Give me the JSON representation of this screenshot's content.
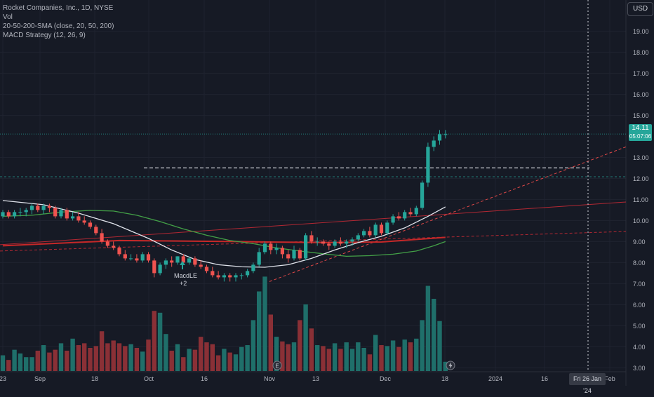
{
  "legend": {
    "symbol": "Rocket Companies, Inc., 1D, NYSE",
    "vol": "Vol",
    "sma": "20-50-200-SMA (close, 20, 50, 200)",
    "macd": "MACD Strategy (12, 26, 9)"
  },
  "currency_button": "USD",
  "price_badge": {
    "price": "14.11",
    "countdown": "05:07:06"
  },
  "crosshair_date": "Fri 26 Jan '24",
  "signal": {
    "name": "MacdLE",
    "qty": "+2"
  },
  "colors": {
    "background": "#161a25",
    "up": "#26a69a",
    "down": "#ef5350",
    "sma20": "#e0e3eb",
    "sma50": "#43a047",
    "sma200": "#c62828",
    "grid": "#1f2330"
  },
  "chart_data": {
    "type": "candlestick",
    "ylim": [
      2.7,
      20.3
    ],
    "y_ticks": [
      "19.00",
      "18.00",
      "17.00",
      "16.00",
      "15.00",
      "13.00",
      "12.00",
      "11.00",
      "10.00",
      "9.00",
      "8.00",
      "7.00",
      "6.00",
      "5.00",
      "4.00",
      "3.00"
    ],
    "x_ticks": [
      "23",
      "Sep",
      "18",
      "Oct",
      "16",
      "Nov",
      "13",
      "Dec",
      "18",
      "2024",
      "16",
      "Feb"
    ],
    "last_price": 14.11,
    "level_line": 12.5,
    "candles": [
      [
        10.2,
        10.5,
        10.1,
        10.4,
        0.17
      ],
      [
        10.4,
        10.5,
        10.1,
        10.2,
        0.12
      ],
      [
        10.2,
        10.5,
        10.1,
        10.4,
        0.23
      ],
      [
        10.4,
        10.6,
        10.2,
        10.4,
        0.19
      ],
      [
        10.4,
        10.6,
        10.2,
        10.5,
        0.15
      ],
      [
        10.5,
        10.8,
        10.3,
        10.7,
        0.15
      ],
      [
        10.7,
        10.8,
        10.4,
        10.5,
        0.22
      ],
      [
        10.5,
        10.8,
        10.3,
        10.7,
        0.28
      ],
      [
        10.7,
        10.8,
        10.4,
        10.6,
        0.2
      ],
      [
        10.6,
        10.7,
        10.1,
        10.2,
        0.23
      ],
      [
        10.2,
        10.6,
        10.1,
        10.5,
        0.3
      ],
      [
        10.5,
        10.6,
        10.0,
        10.1,
        0.22
      ],
      [
        10.1,
        10.4,
        10.0,
        10.2,
        0.35
      ],
      [
        10.2,
        10.4,
        9.9,
        10.0,
        0.28
      ],
      [
        10.0,
        10.2,
        9.8,
        9.9,
        0.3
      ],
      [
        9.9,
        10.0,
        9.6,
        9.7,
        0.25
      ],
      [
        9.7,
        9.8,
        9.3,
        9.4,
        0.27
      ],
      [
        9.4,
        9.6,
        8.9,
        9.0,
        0.43
      ],
      [
        9.0,
        9.1,
        8.7,
        8.8,
        0.3
      ],
      [
        8.8,
        9.0,
        8.6,
        8.7,
        0.33
      ],
      [
        8.7,
        8.8,
        8.3,
        8.4,
        0.3
      ],
      [
        8.4,
        8.6,
        8.1,
        8.2,
        0.27
      ],
      [
        8.2,
        8.4,
        8.1,
        8.2,
        0.29
      ],
      [
        8.2,
        8.4,
        8.0,
        8.1,
        0.25
      ],
      [
        8.1,
        8.5,
        8.0,
        8.4,
        0.21
      ],
      [
        8.4,
        8.5,
        8.0,
        8.1,
        0.34
      ],
      [
        8.1,
        8.2,
        7.3,
        7.5,
        0.65
      ],
      [
        7.5,
        8.0,
        7.4,
        7.9,
        0.63
      ],
      [
        7.9,
        8.2,
        7.7,
        8.1,
        0.4
      ],
      [
        8.1,
        8.3,
        7.8,
        8.0,
        0.22
      ],
      [
        8.0,
        8.3,
        7.9,
        8.3,
        0.29
      ],
      [
        8.3,
        8.4,
        7.9,
        8.0,
        0.15
      ],
      [
        8.0,
        8.3,
        7.9,
        8.2,
        0.24
      ],
      [
        8.2,
        8.3,
        7.8,
        7.9,
        0.23
      ],
      [
        7.9,
        8.1,
        7.7,
        7.8,
        0.37
      ],
      [
        7.8,
        7.9,
        7.5,
        7.6,
        0.31
      ],
      [
        7.6,
        7.8,
        7.3,
        7.4,
        0.29
      ],
      [
        7.4,
        7.6,
        7.2,
        7.3,
        0.17
      ],
      [
        7.3,
        7.5,
        7.1,
        7.4,
        0.24
      ],
      [
        7.4,
        7.5,
        7.1,
        7.3,
        0.2
      ],
      [
        7.3,
        7.5,
        7.1,
        7.4,
        0.18
      ],
      [
        7.4,
        7.5,
        7.2,
        7.4,
        0.26
      ],
      [
        7.4,
        7.7,
        7.3,
        7.6,
        0.28
      ],
      [
        7.6,
        8.0,
        7.5,
        7.9,
        0.55
      ],
      [
        7.9,
        8.7,
        7.8,
        8.5,
        0.86
      ],
      [
        8.5,
        9.0,
        8.4,
        8.9,
        1.02
      ],
      [
        8.9,
        9.0,
        8.4,
        8.6,
        0.61
      ],
      [
        8.6,
        8.9,
        8.4,
        8.7,
        0.37
      ],
      [
        8.7,
        8.8,
        8.2,
        8.4,
        0.32
      ],
      [
        8.4,
        8.6,
        8.0,
        8.2,
        0.29
      ],
      [
        8.2,
        8.8,
        8.1,
        8.6,
        0.31
      ],
      [
        8.6,
        8.7,
        8.1,
        8.2,
        0.55
      ],
      [
        8.2,
        9.4,
        8.1,
        9.3,
        0.72
      ],
      [
        9.3,
        9.5,
        8.9,
        9.0,
        0.46
      ],
      [
        9.0,
        9.2,
        8.8,
        9.0,
        0.28
      ],
      [
        9.0,
        9.1,
        8.8,
        8.9,
        0.27
      ],
      [
        8.9,
        9.0,
        8.6,
        8.8,
        0.24
      ],
      [
        8.8,
        9.1,
        8.7,
        9.0,
        0.3
      ],
      [
        9.0,
        9.2,
        8.8,
        8.9,
        0.24
      ],
      [
        8.9,
        9.1,
        8.7,
        9.0,
        0.31
      ],
      [
        9.0,
        9.2,
        8.8,
        9.1,
        0.24
      ],
      [
        9.1,
        9.4,
        9.0,
        9.3,
        0.31
      ],
      [
        9.3,
        9.6,
        9.2,
        9.5,
        0.25
      ],
      [
        9.5,
        9.7,
        9.2,
        9.3,
        0.18
      ],
      [
        9.3,
        9.9,
        9.2,
        9.8,
        0.39
      ],
      [
        9.8,
        9.9,
        9.3,
        9.4,
        0.28
      ],
      [
        9.4,
        10.0,
        9.3,
        9.9,
        0.27
      ],
      [
        9.9,
        10.3,
        9.8,
        10.2,
        0.33
      ],
      [
        10.2,
        10.4,
        10.0,
        10.1,
        0.26
      ],
      [
        10.1,
        10.5,
        10.0,
        10.4,
        0.34
      ],
      [
        10.4,
        10.6,
        10.2,
        10.3,
        0.31
      ],
      [
        10.3,
        10.7,
        10.2,
        10.6,
        0.35
      ],
      [
        10.6,
        11.9,
        10.5,
        11.8,
        0.55
      ],
      [
        11.8,
        13.7,
        11.6,
        13.5,
        0.92
      ],
      [
        13.5,
        14.0,
        13.3,
        13.8,
        0.78
      ],
      [
        13.8,
        14.3,
        13.6,
        14.1,
        0.54
      ],
      [
        14.1,
        14.3,
        13.9,
        14.1,
        0.1
      ]
    ],
    "sma20": [
      [
        0,
        10.95
      ],
      [
        7,
        10.75
      ],
      [
        13,
        10.35
      ],
      [
        19,
        9.85
      ],
      [
        25,
        9.15
      ],
      [
        29,
        8.6
      ],
      [
        33,
        8.15
      ],
      [
        37,
        7.9
      ],
      [
        41,
        7.8
      ],
      [
        45,
        7.78
      ],
      [
        49,
        7.9
      ],
      [
        53,
        8.2
      ],
      [
        57,
        8.6
      ],
      [
        61,
        8.95
      ],
      [
        65,
        9.25
      ],
      [
        69,
        9.65
      ],
      [
        73,
        10.2
      ],
      [
        76,
        10.65
      ]
    ],
    "sma50": [
      [
        0,
        10.2
      ],
      [
        5,
        10.25
      ],
      [
        10,
        10.4
      ],
      [
        15,
        10.48
      ],
      [
        19,
        10.45
      ],
      [
        23,
        10.25
      ],
      [
        27,
        9.95
      ],
      [
        31,
        9.6
      ],
      [
        35,
        9.3
      ],
      [
        39,
        9.05
      ],
      [
        43,
        8.9
      ],
      [
        47,
        8.7
      ],
      [
        51,
        8.55
      ],
      [
        55,
        8.42
      ],
      [
        59,
        8.3
      ],
      [
        63,
        8.33
      ],
      [
        67,
        8.4
      ],
      [
        71,
        8.55
      ],
      [
        74,
        8.8
      ],
      [
        76,
        9.0
      ]
    ],
    "sma200": [
      [
        0,
        8.8
      ],
      [
        20,
        9.05
      ],
      [
        40,
        9.0
      ],
      [
        55,
        8.95
      ],
      [
        65,
        8.98
      ],
      [
        76,
        9.2
      ]
    ]
  }
}
